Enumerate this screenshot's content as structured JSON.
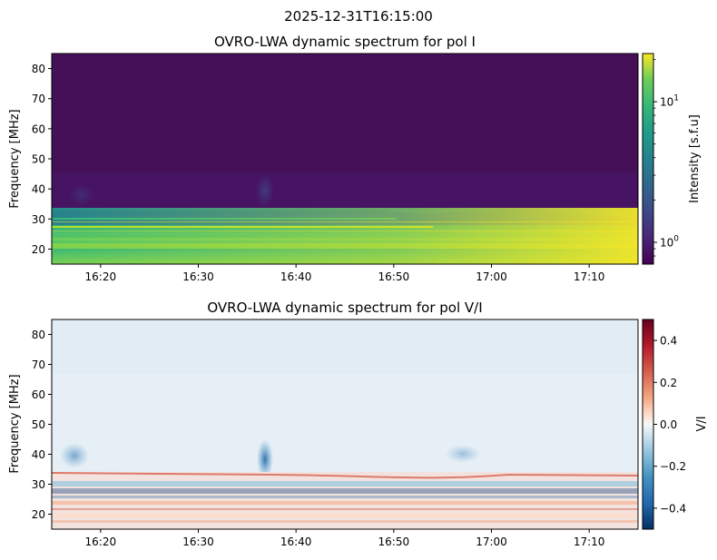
{
  "figure": {
    "suptitle": "2025-12-31T16:15:00"
  },
  "chart_data": [
    {
      "type": "heatmap",
      "title": "OVRO-LWA dynamic spectrum for pol I",
      "xlabel": "",
      "ylabel": "Frequency [MHz]",
      "x_ticks": [
        "16:20",
        "16:30",
        "16:40",
        "16:50",
        "17:00",
        "17:10"
      ],
      "x_range": [
        "16:15",
        "17:15"
      ],
      "y_ticks": [
        20,
        30,
        40,
        50,
        60,
        70,
        80
      ],
      "ylim": [
        15,
        85
      ],
      "colorbar": {
        "label": "Intensity [s.f.u]",
        "scale": "log",
        "colormap": "viridis",
        "range": [
          0.7,
          22
        ],
        "tick_labels": [
          "10^0",
          "10^1"
        ],
        "tick_values": [
          1,
          10
        ]
      },
      "features": {
        "background_level": 0.9,
        "band_low_mhz": [
          15,
          33
        ],
        "band_level": 12,
        "notes_band_upper_edge_mhz": 33
      },
      "colors": {
        "low": "#440154",
        "mid": "#21918c",
        "high": "#fde725"
      }
    },
    {
      "type": "heatmap",
      "title": "OVRO-LWA dynamic spectrum for pol V/I",
      "xlabel": "",
      "ylabel": "Frequency [MHz]",
      "x_ticks": [
        "16:20",
        "16:30",
        "16:40",
        "16:50",
        "17:00",
        "17:10"
      ],
      "x_range": [
        "16:15",
        "17:15"
      ],
      "y_ticks": [
        20,
        30,
        40,
        50,
        60,
        70,
        80
      ],
      "ylim": [
        15,
        85
      ],
      "colorbar": {
        "label": "V/I",
        "scale": "linear",
        "colormap": "RdBu_r",
        "range": [
          -0.5,
          0.5
        ],
        "tick_values": [
          -0.4,
          -0.2,
          0.0,
          0.2,
          0.4
        ],
        "tick_labels": [
          "−0.4",
          "−0.2",
          "0.0",
          "0.2",
          "0.4"
        ]
      },
      "features": {
        "background_level": -0.05,
        "low_band_mhz": [
          15,
          34
        ],
        "low_band_level": 0.08
      },
      "colors": {
        "low": "#053061",
        "mid": "#f7f7f7",
        "high": "#67001f"
      }
    }
  ]
}
